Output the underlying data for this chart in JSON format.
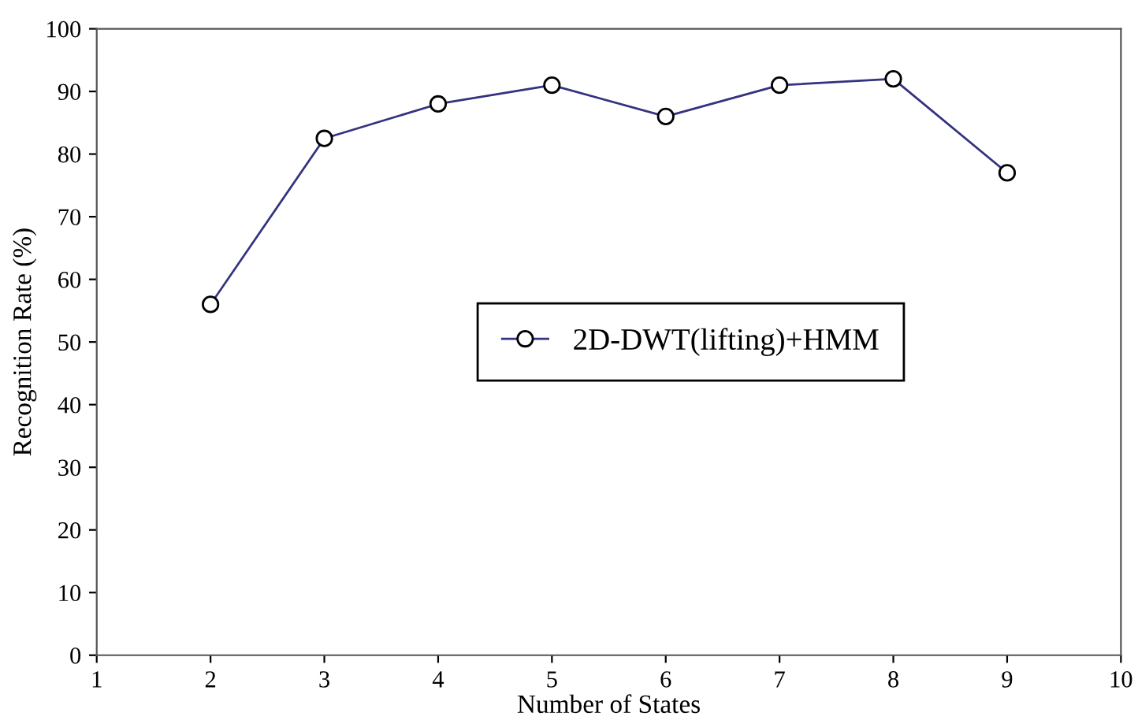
{
  "chart_data": {
    "type": "line",
    "xlabel": "Number of States",
    "ylabel": "Recognition Rate (%)",
    "x": [
      2,
      3,
      4,
      5,
      6,
      7,
      8,
      9
    ],
    "series": [
      {
        "name": "2D-DWT(lifting)+HMM",
        "color": "#333380",
        "values": [
          56,
          82.5,
          88,
          91,
          86,
          91,
          92,
          77
        ]
      }
    ],
    "xlim": [
      1,
      10
    ],
    "xticks": [
      1,
      2,
      3,
      4,
      5,
      6,
      7,
      8,
      9,
      10
    ],
    "ylim": [
      0,
      100
    ],
    "yticks": [
      0,
      10,
      20,
      30,
      40,
      50,
      60,
      70,
      80,
      90,
      100
    ],
    "marker": "circle",
    "line_style": "solid",
    "grid": false,
    "legend": "center"
  }
}
